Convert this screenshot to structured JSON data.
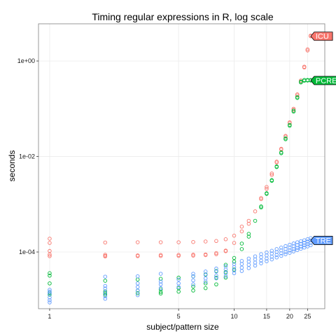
{
  "chart_data": {
    "type": "scatter",
    "title": "Timing regular expressions in R, log scale",
    "xlabel": "subject/pattern size",
    "ylabel": "seconds",
    "x_scale": "log",
    "y_scale": "log",
    "xlim": [
      0.87,
      31
    ],
    "ylim": [
      6.5e-06,
      6
    ],
    "x_ticks": [
      1,
      5,
      10,
      15,
      20,
      25
    ],
    "x_tick_labels": [
      "1",
      "5",
      "10",
      "15",
      "20",
      "25"
    ],
    "y_ticks": [
      0.0001,
      0.01,
      1
    ],
    "y_tick_labels": [
      "1e-04",
      "1e-02",
      "1e+00"
    ],
    "grid": true,
    "legend": "direct labels at right end of each series",
    "series": [
      {
        "name": "ICU",
        "color": "#f8766d",
        "points": [
          [
            1,
            0.00019
          ],
          [
            1,
            0.000155
          ],
          [
            1,
            0.000105
          ],
          [
            1,
            8.85e-05
          ],
          [
            1,
            8.2e-05
          ],
          [
            2,
            0.000158
          ],
          [
            2,
            8.75e-05
          ],
          [
            2,
            8.3e-05
          ],
          [
            2,
            8.1e-05
          ],
          [
            3,
            0.00016
          ],
          [
            3,
            8.5e-05
          ],
          [
            3,
            8.2e-05
          ],
          [
            4,
            0.00016
          ],
          [
            4,
            8.65e-05
          ],
          [
            4,
            8.25e-05
          ],
          [
            5,
            0.00016
          ],
          [
            5,
            8.7e-05
          ],
          [
            5,
            8.3e-05
          ],
          [
            6,
            0.000162
          ],
          [
            6,
            8.8e-05
          ],
          [
            6,
            8.4e-05
          ],
          [
            7,
            0.000166
          ],
          [
            7,
            8.9e-05
          ],
          [
            7,
            8.6e-05
          ],
          [
            8,
            0.00017
          ],
          [
            8,
            9.5e-05
          ],
          [
            8,
            9e-05
          ],
          [
            9,
            0.000185
          ],
          [
            9,
            0.000107
          ],
          [
            9,
            0.000104
          ],
          [
            10,
            0.00022
          ],
          [
            10,
            0.000155
          ],
          [
            11,
            0.00034
          ],
          [
            11,
            0.00027
          ],
          [
            12,
            0.00045
          ],
          [
            12,
            0.00039
          ],
          [
            13,
            0.00071
          ],
          [
            14,
            0.00135
          ],
          [
            14,
            0.00128
          ],
          [
            15,
            0.0023
          ],
          [
            15,
            0.0021
          ],
          [
            16,
            0.0044
          ],
          [
            16,
            0.0041
          ],
          [
            17,
            0.0078
          ],
          [
            17,
            0.0075
          ],
          [
            18,
            0.0145
          ],
          [
            18,
            0.014
          ],
          [
            19,
            0.027
          ],
          [
            19,
            0.026
          ],
          [
            20,
            0.052
          ],
          [
            20,
            0.05
          ],
          [
            21,
            0.1
          ],
          [
            21,
            0.095
          ],
          [
            22,
            0.2
          ],
          [
            22,
            0.19
          ],
          [
            23,
            0.39
          ],
          [
            23,
            0.37
          ],
          [
            24,
            0.76
          ],
          [
            24,
            0.73
          ],
          [
            25,
            1.75
          ],
          [
            25,
            1.66
          ],
          [
            26,
            3.4
          ],
          [
            26,
            3.3
          ]
        ]
      },
      {
        "name": "PCRE",
        "color": "#00ba38",
        "points": [
          [
            1,
            3.6e-05
          ],
          [
            1,
            3.2e-05
          ],
          [
            1,
            2.2e-05
          ],
          [
            1,
            1.4e-05
          ],
          [
            1,
            1.28e-05
          ],
          [
            2,
            2.5e-05
          ],
          [
            2,
            1.5e-05
          ],
          [
            2,
            1.38e-05
          ],
          [
            2,
            1.28e-05
          ],
          [
            3,
            2.65e-05
          ],
          [
            3,
            1.55e-05
          ],
          [
            3,
            1.37e-05
          ],
          [
            4,
            2.75e-05
          ],
          [
            4,
            1.65e-05
          ],
          [
            4,
            1.45e-05
          ],
          [
            4,
            1.35e-05
          ],
          [
            5,
            2.9e-05
          ],
          [
            5,
            1.75e-05
          ],
          [
            5,
            1.48e-05
          ],
          [
            6,
            3.1e-05
          ],
          [
            6,
            1.9e-05
          ],
          [
            6,
            1.56e-05
          ],
          [
            7,
            3.4e-05
          ],
          [
            7,
            2.2e-05
          ],
          [
            7,
            1.75e-05
          ],
          [
            8,
            4e-05
          ],
          [
            8,
            2.9e-05
          ],
          [
            8,
            2.1e-05
          ],
          [
            9,
            5.4e-05
          ],
          [
            9,
            3.8e-05
          ],
          [
            9,
            2.9e-05
          ],
          [
            10,
            7.5e-05
          ],
          [
            10,
            6.3e-05
          ],
          [
            10,
            4.3e-05
          ],
          [
            11,
            0.00015
          ],
          [
            11,
            0.000115
          ],
          [
            12,
            0.00024
          ],
          [
            12,
            0.00021
          ],
          [
            13,
            0.00045
          ],
          [
            14,
            0.0009
          ],
          [
            14,
            0.00086
          ],
          [
            15,
            0.0017
          ],
          [
            15,
            0.00165
          ],
          [
            16,
            0.0032
          ],
          [
            16,
            0.0031
          ],
          [
            17,
            0.0062
          ],
          [
            17,
            0.006
          ],
          [
            18,
            0.0122
          ],
          [
            18,
            0.0117
          ],
          [
            19,
            0.024
          ],
          [
            19,
            0.023
          ],
          [
            20,
            0.046
          ],
          [
            20,
            0.044
          ],
          [
            21,
            0.091
          ],
          [
            21,
            0.087
          ],
          [
            22,
            0.175
          ],
          [
            22,
            0.168
          ],
          [
            23,
            0.37
          ],
          [
            23,
            0.355
          ],
          [
            24,
            0.4
          ],
          [
            24,
            0.385
          ],
          [
            25,
            0.4
          ],
          [
            25,
            0.39
          ],
          [
            26,
            0.4
          ],
          [
            26,
            0.39
          ]
        ]
      },
      {
        "name": "TRE",
        "color": "#619cff",
        "points": [
          [
            1,
            1.62e-05
          ],
          [
            1,
            1.48e-05
          ],
          [
            1,
            1.35e-05
          ],
          [
            1,
            1.12e-05
          ],
          [
            1,
            9.8e-06
          ],
          [
            1,
            8.8e-06
          ],
          [
            2,
            3.05e-05
          ],
          [
            2,
            1.95e-05
          ],
          [
            2,
            1.72e-05
          ],
          [
            2,
            1.42e-05
          ],
          [
            2,
            1.18e-05
          ],
          [
            2,
            1.05e-05
          ],
          [
            3,
            3.1e-05
          ],
          [
            3,
            2.2e-05
          ],
          [
            3,
            1.85e-05
          ],
          [
            3,
            1.55e-05
          ],
          [
            3,
            1.25e-05
          ],
          [
            4,
            3.5e-05
          ],
          [
            4,
            2.4e-05
          ],
          [
            4,
            2.1e-05
          ],
          [
            4,
            1.75e-05
          ],
          [
            5,
            2.65e-05
          ],
          [
            5,
            2.2e-05
          ],
          [
            5,
            1.85e-05
          ],
          [
            6,
            3.5e-05
          ],
          [
            6,
            3.1e-05
          ],
          [
            6,
            2.55e-05
          ],
          [
            6,
            2.1e-05
          ],
          [
            7,
            3.9e-05
          ],
          [
            7,
            3.3e-05
          ],
          [
            7,
            2.8e-05
          ],
          [
            7,
            2.4e-05
          ],
          [
            8,
            4.5e-05
          ],
          [
            8,
            3.9e-05
          ],
          [
            8,
            3.2e-05
          ],
          [
            8,
            2.8e-05
          ],
          [
            9,
            5e-05
          ],
          [
            9,
            4.3e-05
          ],
          [
            9,
            3.6e-05
          ],
          [
            9,
            3.1e-05
          ],
          [
            10,
            5.6e-05
          ],
          [
            10,
            4.8e-05
          ],
          [
            10,
            4.1e-05
          ],
          [
            10,
            3.6e-05
          ],
          [
            11,
            6.5e-05
          ],
          [
            11,
            5.6e-05
          ],
          [
            11,
            4.7e-05
          ],
          [
            11,
            4e-05
          ],
          [
            12,
            7.3e-05
          ],
          [
            12,
            6.3e-05
          ],
          [
            12,
            5.4e-05
          ],
          [
            12,
            4.6e-05
          ],
          [
            13,
            8.1e-05
          ],
          [
            13,
            7e-05
          ],
          [
            13,
            6e-05
          ],
          [
            13,
            5.2e-05
          ],
          [
            14,
            9e-05
          ],
          [
            14,
            7.8e-05
          ],
          [
            14,
            6.6e-05
          ],
          [
            14,
            5.8e-05
          ],
          [
            15,
            9.8e-05
          ],
          [
            15,
            8.5e-05
          ],
          [
            15,
            7.3e-05
          ],
          [
            15,
            6.4e-05
          ],
          [
            16,
            0.000106
          ],
          [
            16,
            9.3e-05
          ],
          [
            16,
            8e-05
          ],
          [
            16,
            7e-05
          ],
          [
            17,
            0.000115
          ],
          [
            17,
            0.0001
          ],
          [
            17,
            8.7e-05
          ],
          [
            17,
            7.7e-05
          ],
          [
            18,
            0.000124
          ],
          [
            18,
            0.000108
          ],
          [
            18,
            9.4e-05
          ],
          [
            18,
            8.3e-05
          ],
          [
            19,
            0.000133
          ],
          [
            19,
            0.000116
          ],
          [
            19,
            0.0001
          ],
          [
            19,
            9e-05
          ],
          [
            20,
            0.000142
          ],
          [
            20,
            0.000124
          ],
          [
            20,
            0.000108
          ],
          [
            20,
            9.6e-05
          ],
          [
            21,
            0.000151
          ],
          [
            21,
            0.000132
          ],
          [
            21,
            0.000115
          ],
          [
            21,
            0.000103
          ],
          [
            22,
            0.00016
          ],
          [
            22,
            0.00014
          ],
          [
            22,
            0.000122
          ],
          [
            22,
            0.00011
          ],
          [
            23,
            0.000168
          ],
          [
            23,
            0.000148
          ],
          [
            23,
            0.00013
          ],
          [
            23,
            0.000117
          ],
          [
            24,
            0.000176
          ],
          [
            24,
            0.000156
          ],
          [
            24,
            0.000138
          ],
          [
            24,
            0.000124
          ],
          [
            25,
            0.000185
          ],
          [
            25,
            0.000165
          ],
          [
            25,
            0.000146
          ],
          [
            25,
            0.000131
          ],
          [
            26,
            0.000195
          ],
          [
            26,
            0.000175
          ],
          [
            26,
            0.000155
          ],
          [
            26,
            0.000139
          ]
        ]
      }
    ],
    "direct_labels": [
      {
        "text": "ICU",
        "series": "ICU",
        "x": 26,
        "y": 3.3,
        "fill": "#f8766d"
      },
      {
        "text": "PCRE",
        "series": "PCRE",
        "x": 26,
        "y": 0.39,
        "fill": "#00ba38"
      },
      {
        "text": "TRE",
        "series": "TRE",
        "x": 26,
        "y": 0.000175,
        "fill": "#619cff"
      }
    ]
  }
}
